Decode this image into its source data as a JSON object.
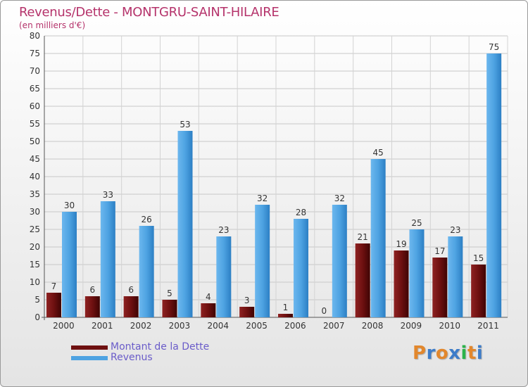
{
  "header": {
    "title": "Revenus/Dette - MONTGRU-SAINT-HILAIRE",
    "subtitle": "(en milliers d'€)"
  },
  "brand": {
    "text": "Proxiti",
    "colors": [
      "#e2872c",
      "#3d7cc9",
      "#e2872c",
      "#3d7cc9",
      "#2bb34a",
      "#e2872c",
      "#3d7cc9"
    ]
  },
  "chart_data": {
    "type": "bar",
    "categories": [
      "2000",
      "2001",
      "2002",
      "2003",
      "2004",
      "2005",
      "2006",
      "2007",
      "2008",
      "2009",
      "2010",
      "2011"
    ],
    "series": [
      {
        "name": "Montant de la Dette",
        "values": [
          7,
          6,
          6,
          5,
          4,
          3,
          1,
          0,
          21,
          19,
          17,
          15
        ],
        "color": "#6e1010"
      },
      {
        "name": "Revenus",
        "values": [
          30,
          33,
          26,
          53,
          23,
          32,
          28,
          32,
          45,
          25,
          23,
          75
        ],
        "color": "#4ea3e2"
      }
    ],
    "yticks": [
      0,
      5,
      10,
      15,
      20,
      25,
      30,
      35,
      40,
      45,
      50,
      55,
      60,
      65,
      70,
      75,
      80
    ],
    "ylim": [
      0,
      80
    ],
    "grid": true,
    "legend_position": "bottom-left"
  }
}
